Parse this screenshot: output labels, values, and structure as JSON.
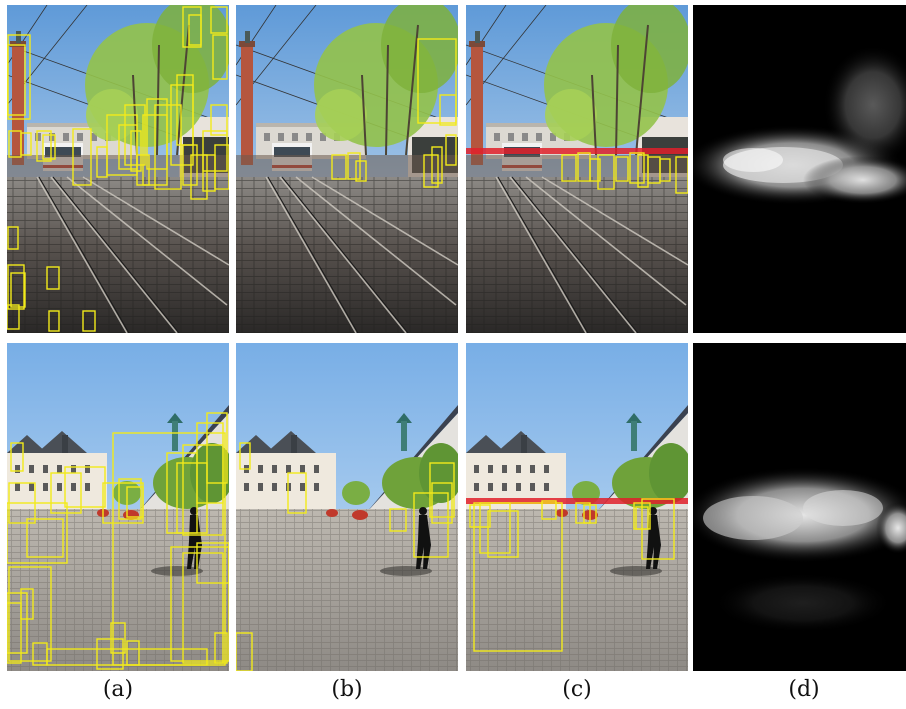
{
  "captions": [
    "(a)",
    "(b)",
    "(c)",
    "(d)"
  ],
  "colors": {
    "box": "#f2ea1a",
    "horizon": "#e0202a",
    "sky_top": "#6aa6e0",
    "sky_bottom": "#c7def2",
    "pavement_light": "#a8a39c",
    "pavement_dark": "#2f2d2c",
    "foliage": "#8fbf3e",
    "tower": "#b5563e"
  }
}
